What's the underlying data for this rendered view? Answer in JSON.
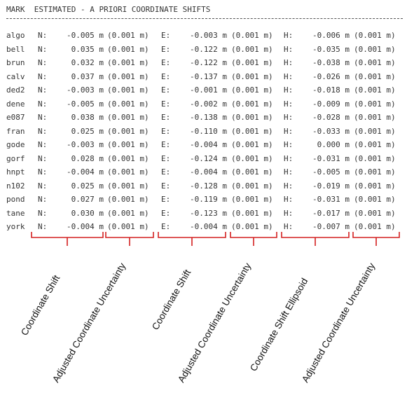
{
  "header": {
    "title": "MARK  ESTIMATED - A PRIORI COORDINATE SHIFTS"
  },
  "rows": [
    {
      "mark": "algo",
      "n_label": "N:",
      "n_shift": "-0.005 m",
      "n_unc": "(0.001 m)",
      "e_label": "E:",
      "e_shift": "-0.003 m",
      "e_unc": "(0.001 m)",
      "h_label": "H:",
      "h_shift": "-0.006 m",
      "h_unc": "(0.001 m)"
    },
    {
      "mark": "bell",
      "n_label": "N:",
      "n_shift": "0.035 m",
      "n_unc": "(0.001 m)",
      "e_label": "E:",
      "e_shift": "-0.122 m",
      "e_unc": "(0.001 m)",
      "h_label": "H:",
      "h_shift": "-0.035 m",
      "h_unc": "(0.001 m)"
    },
    {
      "mark": "brun",
      "n_label": "N:",
      "n_shift": "0.032 m",
      "n_unc": "(0.001 m)",
      "e_label": "E:",
      "e_shift": "-0.122 m",
      "e_unc": "(0.001 m)",
      "h_label": "H:",
      "h_shift": "-0.038 m",
      "h_unc": "(0.001 m)"
    },
    {
      "mark": "calv",
      "n_label": "N:",
      "n_shift": "0.037 m",
      "n_unc": "(0.001 m)",
      "e_label": "E:",
      "e_shift": "-0.137 m",
      "e_unc": "(0.001 m)",
      "h_label": "H:",
      "h_shift": "-0.026 m",
      "h_unc": "(0.001 m)"
    },
    {
      "mark": "ded2",
      "n_label": "N:",
      "n_shift": "-0.003 m",
      "n_unc": "(0.001 m)",
      "e_label": "E:",
      "e_shift": "-0.001 m",
      "e_unc": "(0.001 m)",
      "h_label": "H:",
      "h_shift": "-0.018 m",
      "h_unc": "(0.001 m)"
    },
    {
      "mark": "dene",
      "n_label": "N:",
      "n_shift": "-0.005 m",
      "n_unc": "(0.001 m)",
      "e_label": "E:",
      "e_shift": "-0.002 m",
      "e_unc": "(0.001 m)",
      "h_label": "H:",
      "h_shift": "-0.009 m",
      "h_unc": "(0.001 m)"
    },
    {
      "mark": "e087",
      "n_label": "N:",
      "n_shift": "0.038 m",
      "n_unc": "(0.001 m)",
      "e_label": "E:",
      "e_shift": "-0.138 m",
      "e_unc": "(0.001 m)",
      "h_label": "H:",
      "h_shift": "-0.028 m",
      "h_unc": "(0.001 m)"
    },
    {
      "mark": "fran",
      "n_label": "N:",
      "n_shift": "0.025 m",
      "n_unc": "(0.001 m)",
      "e_label": "E:",
      "e_shift": "-0.110 m",
      "e_unc": "(0.001 m)",
      "h_label": "H:",
      "h_shift": "-0.033 m",
      "h_unc": "(0.001 m)"
    },
    {
      "mark": "gode",
      "n_label": "N:",
      "n_shift": "-0.003 m",
      "n_unc": "(0.001 m)",
      "e_label": "E:",
      "e_shift": "-0.004 m",
      "e_unc": "(0.001 m)",
      "h_label": "H:",
      "h_shift": "0.000 m",
      "h_unc": "(0.001 m)"
    },
    {
      "mark": "gorf",
      "n_label": "N:",
      "n_shift": "0.028 m",
      "n_unc": "(0.001 m)",
      "e_label": "E:",
      "e_shift": "-0.124 m",
      "e_unc": "(0.001 m)",
      "h_label": "H:",
      "h_shift": "-0.031 m",
      "h_unc": "(0.001 m)"
    },
    {
      "mark": "hnpt",
      "n_label": "N:",
      "n_shift": "-0.004 m",
      "n_unc": "(0.001 m)",
      "e_label": "E:",
      "e_shift": "-0.004 m",
      "e_unc": "(0.001 m)",
      "h_label": "H:",
      "h_shift": "-0.005 m",
      "h_unc": "(0.001 m)"
    },
    {
      "mark": "n102",
      "n_label": "N:",
      "n_shift": "0.025 m",
      "n_unc": "(0.001 m)",
      "e_label": "E:",
      "e_shift": "-0.128 m",
      "e_unc": "(0.001 m)",
      "h_label": "H:",
      "h_shift": "-0.019 m",
      "h_unc": "(0.001 m)"
    },
    {
      "mark": "pond",
      "n_label": "N:",
      "n_shift": "0.027 m",
      "n_unc": "(0.001 m)",
      "e_label": "E:",
      "e_shift": "-0.119 m",
      "e_unc": "(0.001 m)",
      "h_label": "H:",
      "h_shift": "-0.031 m",
      "h_unc": "(0.001 m)"
    },
    {
      "mark": "tane",
      "n_label": "N:",
      "n_shift": "0.030 m",
      "n_unc": "(0.001 m)",
      "e_label": "E:",
      "e_shift": "-0.123 m",
      "e_unc": "(0.001 m)",
      "h_label": "H:",
      "h_shift": "-0.017 m",
      "h_unc": "(0.001 m)"
    },
    {
      "mark": "york",
      "n_label": "N:",
      "n_shift": "-0.004 m",
      "n_unc": "(0.001 m)",
      "e_label": "E:",
      "e_shift": "-0.004 m",
      "e_unc": "(0.001 m)",
      "h_label": "H:",
      "h_shift": "-0.007 m",
      "h_unc": "(0.001 m)"
    }
  ],
  "annotations": {
    "color": "#d42020",
    "labels": [
      "Coordinate Shift",
      "Adjusted Coordinate Uncertainty",
      "Coordinate Shift",
      "Adjusted Coordinate Uncertainty",
      "Coordinate Shift Ellipsoid",
      "Adjusted Coordinate Uncertainty"
    ]
  }
}
